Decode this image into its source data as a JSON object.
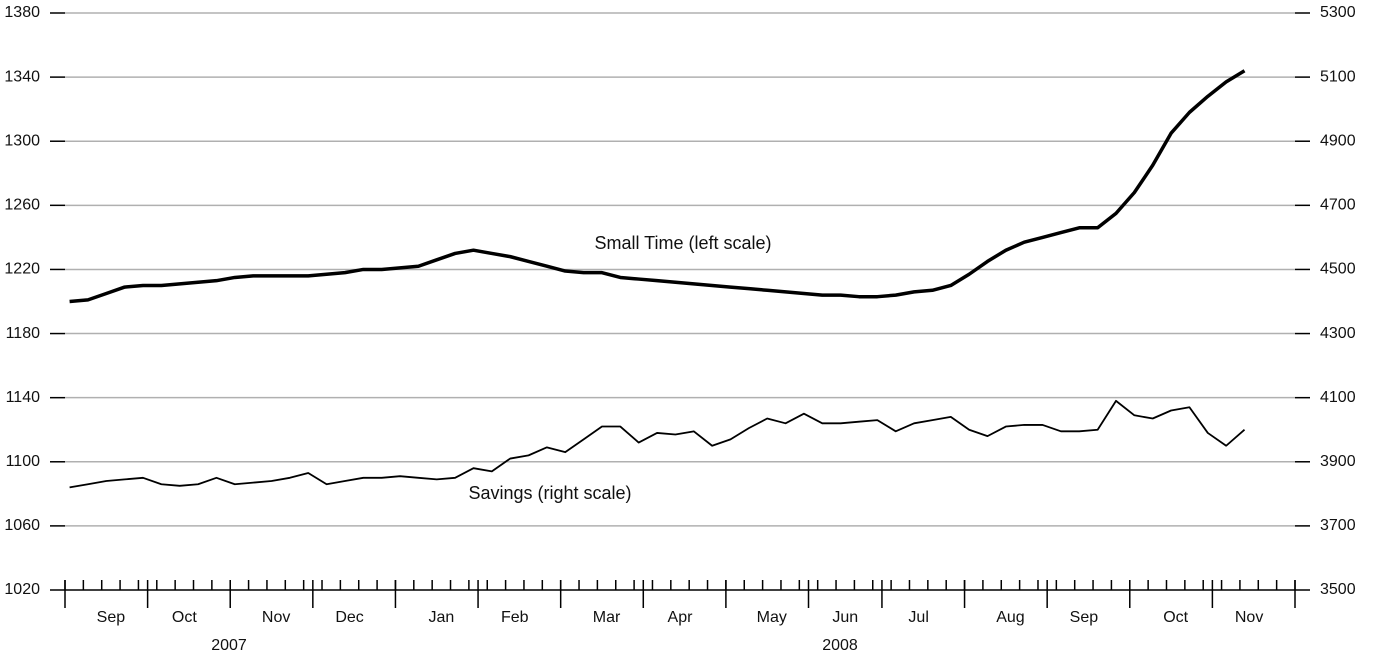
{
  "chart_data": {
    "type": "line",
    "annotations": [
      "Small Time (left scale)",
      "Savings (right scale)"
    ],
    "categories": [
      null,
      null,
      "Sep",
      null,
      null,
      null,
      "Oct",
      null,
      null,
      null,
      null,
      "Nov",
      null,
      null,
      null,
      "Dec",
      null,
      null,
      null,
      null,
      "Jan",
      null,
      null,
      null,
      "Feb",
      null,
      null,
      null,
      null,
      "Mar",
      null,
      null,
      null,
      "Apr",
      null,
      null,
      null,
      null,
      "May",
      null,
      null,
      null,
      "Jun",
      null,
      null,
      null,
      "Jul",
      null,
      null,
      null,
      null,
      "Aug",
      null,
      null,
      null,
      "Sep",
      null,
      null,
      null,
      null,
      "Oct",
      null,
      null,
      null,
      "Nov",
      null,
      null
    ],
    "year_labels": [
      "2007",
      "2008"
    ],
    "series": [
      {
        "name": "Small Time",
        "color": "#000000",
        "values": [
          1200,
          1201,
          1205,
          1209,
          1210,
          1210,
          1211,
          1212,
          1213,
          1215,
          1216,
          1216,
          1216,
          1216,
          1217,
          1218,
          1220,
          1220,
          1221,
          1222,
          1226,
          1230,
          1232,
          1230,
          1228,
          1225,
          1222,
          1219,
          1218,
          1218,
          1215,
          1214,
          1213,
          1212,
          1211,
          1210,
          1209,
          1208,
          1207,
          1206,
          1205,
          1204,
          1204,
          1203,
          1203,
          1204,
          1206,
          1207,
          1210,
          1217,
          1225,
          1232,
          1237,
          1240,
          1243,
          1246,
          1246,
          1255,
          1268,
          1285,
          1305,
          1318,
          1328,
          1337,
          1344,
          null,
          null
        ]
      },
      {
        "name": "Savings",
        "color": "#000000",
        "axis": "y2",
        "values": [
          3820,
          3830,
          3840,
          3845,
          3850,
          3830,
          3825,
          3830,
          3850,
          3830,
          3835,
          3840,
          3850,
          3865,
          3830,
          3840,
          3850,
          3850,
          3855,
          3850,
          3845,
          3850,
          3880,
          3870,
          3910,
          3920,
          3945,
          3930,
          3970,
          4010,
          4010,
          3960,
          3990,
          3985,
          3995,
          3950,
          3970,
          4005,
          4035,
          4020,
          4050,
          4020,
          4020,
          4025,
          4030,
          3995,
          4020,
          4030,
          4040,
          4000,
          3980,
          4010,
          4015,
          4015,
          3995,
          3995,
          4000,
          4090,
          4045,
          4035,
          4060,
          4070,
          3990,
          3950,
          4000,
          null,
          null
        ]
      }
    ],
    "ylim": [
      1020,
      1380
    ],
    "yticks": [
      1020,
      1060,
      1100,
      1140,
      1180,
      1220,
      1260,
      1300,
      1340,
      1380
    ],
    "y2lim": [
      3500,
      5300
    ],
    "y2ticks": [
      3500,
      3700,
      3900,
      4100,
      4300,
      4500,
      4700,
      4900,
      5100,
      5300
    ],
    "grid": true
  }
}
